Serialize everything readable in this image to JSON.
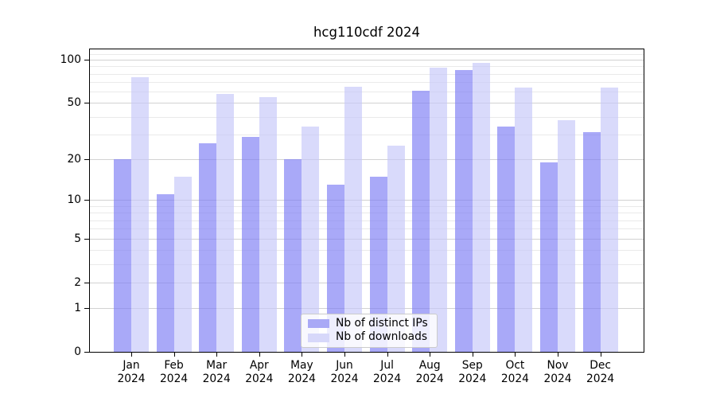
{
  "chart_data": {
    "type": "bar",
    "title": "hcg110cdf 2024",
    "categories": [
      "Jan",
      "Feb",
      "Mar",
      "Apr",
      "May",
      "Jun",
      "Jul",
      "Aug",
      "Sep",
      "Oct",
      "Nov",
      "Dec"
    ],
    "year": "2024",
    "series": [
      {
        "name": "Nb of distinct IPs",
        "swatch_color": "#a9a9f6",
        "bar_fill": "rgba(124,124,244,0.66)",
        "values": [
          20,
          11,
          26,
          29,
          20,
          13,
          15,
          61,
          85,
          34,
          19,
          31
        ]
      },
      {
        "name": "Nb of downloads",
        "swatch_color": "#d7d8fa",
        "bar_fill": "rgba(198,199,249,0.66)",
        "values": [
          76,
          15,
          58,
          55,
          34,
          65,
          25,
          88,
          95,
          64,
          38,
          64
        ]
      }
    ],
    "yscale": "log1p",
    "ylim": [
      0,
      118
    ],
    "y_major_ticks": [
      0,
      1,
      2,
      5,
      10,
      20,
      50,
      100
    ],
    "y_minor_gridlines": [
      3,
      4,
      6,
      7,
      8,
      9,
      30,
      40,
      60,
      70,
      80,
      90,
      110
    ],
    "grid": true,
    "legend_position": "lower center"
  }
}
